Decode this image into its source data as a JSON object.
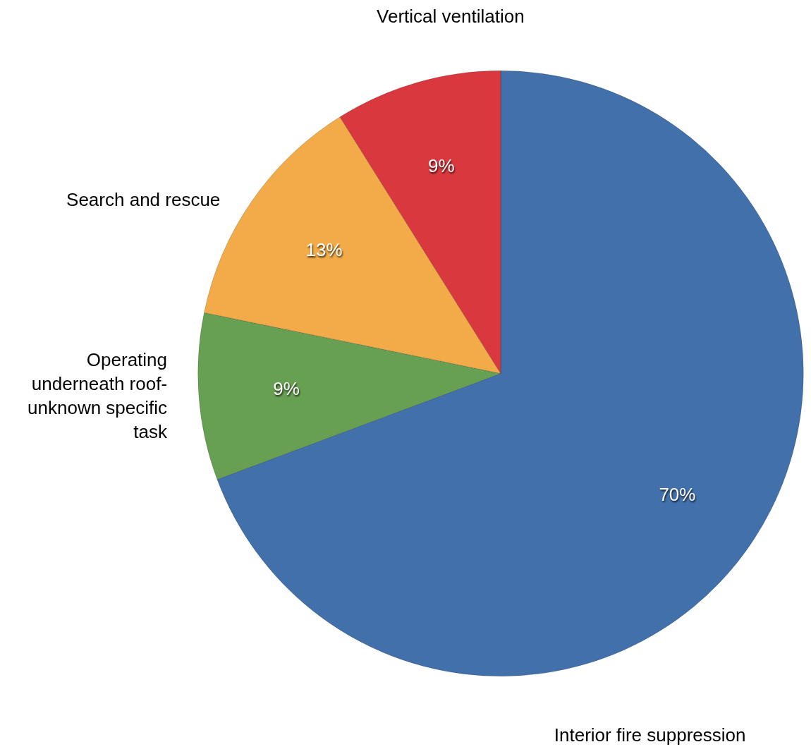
{
  "chart_data": {
    "type": "pie",
    "categories": [
      "Interior fire suppression",
      "Operating underneath roof-unknown specific task",
      "Search and rescue",
      "Vertical ventilation"
    ],
    "values": [
      70,
      9,
      13,
      9
    ],
    "colors": [
      "#4270aa",
      "#67a052",
      "#f2ab48",
      "#d9393e"
    ],
    "value_labels": [
      "70%",
      "9%",
      "13%",
      "9%"
    ]
  }
}
